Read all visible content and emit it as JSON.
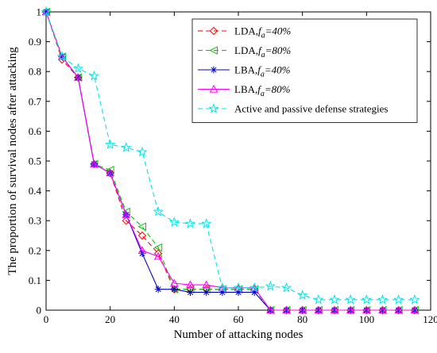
{
  "chart_data": {
    "type": "line",
    "title": "",
    "xlabel": "Number of attacking nodes",
    "ylabel": "The proportion of survival nodes after attacking",
    "xlim": [
      0,
      120
    ],
    "ylim": [
      0,
      1
    ],
    "xticks": [
      0,
      20,
      40,
      60,
      80,
      100,
      120
    ],
    "yticks": [
      0,
      0.1,
      0.2,
      0.3,
      0.4,
      0.5,
      0.6,
      0.7,
      0.8,
      0.9,
      1
    ],
    "grid": false,
    "legend_position": "top-right",
    "x": [
      0,
      5,
      10,
      15,
      20,
      25,
      30,
      35,
      40,
      45,
      50,
      55,
      60,
      65,
      70,
      75,
      80,
      85,
      90,
      95,
      100,
      105,
      110,
      115
    ],
    "series": [
      {
        "name": "LDA,f_a=40%",
        "legend_main": "LDA,",
        "legend_f": "f",
        "legend_sub": "a",
        "legend_val": "=40%",
        "color": "#ff0000",
        "dash": "dashed",
        "marker": "diamond",
        "values": [
          1,
          0.84,
          0.78,
          0.49,
          0.46,
          0.3,
          0.25,
          0.19,
          0.07,
          0.07,
          0.07,
          0.07,
          0.07,
          0.07,
          0,
          0,
          0,
          0,
          0,
          0,
          0,
          0,
          0,
          0
        ]
      },
      {
        "name": "LDA,f_a=80%",
        "legend_main": "LDA,",
        "legend_f": "f",
        "legend_sub": "a",
        "legend_val": "=80%",
        "color": "#00cc00",
        "dash": "dashed",
        "marker": "triangle-left",
        "values": [
          1,
          0.85,
          0.78,
          0.49,
          0.47,
          0.33,
          0.28,
          0.21,
          0.07,
          0.07,
          0.07,
          0.07,
          0.07,
          0.07,
          0,
          0,
          0,
          0,
          0,
          0,
          0,
          0,
          0,
          0
        ]
      },
      {
        "name": "LBA,f_a=40%",
        "legend_main": "LBA,",
        "legend_f": "f",
        "legend_sub": "a",
        "legend_val": "=40%",
        "color": "#0000cc",
        "dash": "solid",
        "marker": "star",
        "values": [
          1,
          0.85,
          0.78,
          0.49,
          0.46,
          0.32,
          0.19,
          0.07,
          0.07,
          0.06,
          0.06,
          0.06,
          0.06,
          0.06,
          0,
          0,
          0,
          0,
          0,
          0,
          0,
          0,
          0,
          0
        ]
      },
      {
        "name": "LBA,f_a=80%",
        "legend_main": "LBA,",
        "legend_f": "f",
        "legend_sub": "a",
        "legend_val": "=80%",
        "color": "#ff00ff",
        "dash": "solid",
        "marker": "triangle-up",
        "values": [
          1,
          0.85,
          0.78,
          0.49,
          0.46,
          0.32,
          0.2,
          0.18,
          0.09,
          0.085,
          0.085,
          0.075,
          0.075,
          0.075,
          0,
          0,
          0,
          0,
          0,
          0,
          0,
          0,
          0,
          0
        ]
      },
      {
        "name": "Active and passive defense strategies",
        "legend_main": "Active and passive defense strategies",
        "legend_f": "",
        "legend_sub": "",
        "legend_val": "",
        "color": "#00e5ee",
        "dash": "dashed",
        "marker": "hexagram",
        "values": [
          1,
          0.85,
          0.81,
          0.785,
          0.555,
          0.545,
          0.53,
          0.33,
          0.295,
          0.29,
          0.29,
          0.075,
          0.075,
          0.075,
          0.08,
          0.075,
          0.05,
          0.035,
          0.035,
          0.035,
          0.035,
          0.035,
          0.035,
          0.035
        ]
      }
    ]
  }
}
